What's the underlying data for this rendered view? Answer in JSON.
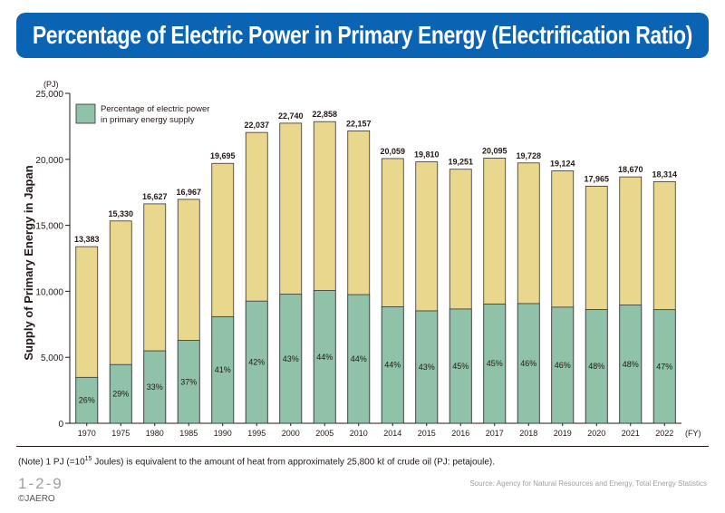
{
  "title": "Percentage of Electric Power in Primary Energy (Electrification Ratio)",
  "note": {
    "prefix": "(Note) 1 PJ (=10",
    "sup": "15",
    "suffix": " Joules) is equivalent to the amount of heat from approximately 25,800 kℓ of crude oil (PJ: petajoule)."
  },
  "figure_number": "1-2-9",
  "copyright": "©JAERO",
  "source": "Source: Agency for Natural Resources and Energy, Total Energy Statistics",
  "colors": {
    "total_bar": "#e9d78e",
    "electric_bar": "#8fc2a8",
    "bar_stroke": "#333333",
    "title_bg": "#0b63b3"
  },
  "chart_data": {
    "type": "bar",
    "stacked_overlay": true,
    "y_unit_label": "(PJ)",
    "x_unit_label": "(FY)",
    "ylabel": "Supply of Primary Energy in Japan",
    "ylim": [
      0,
      25000
    ],
    "yticks": [
      0,
      5000,
      10000,
      15000,
      20000,
      25000
    ],
    "ytick_labels": [
      "0",
      "5,000",
      "10,000",
      "15,000",
      "20,000",
      "25,000"
    ],
    "legend": {
      "label_line1": "Percentage of electric power",
      "label_line2": "in primary energy supply",
      "position": "top-left"
    },
    "categories": [
      "1970",
      "1975",
      "1980",
      "1985",
      "1990",
      "1995",
      "2000",
      "2005",
      "2010",
      "2014",
      "2015",
      "2016",
      "2017",
      "2018",
      "2019",
      "2020",
      "2021",
      "2022"
    ],
    "total_values": [
      13383,
      15330,
      16627,
      16967,
      19695,
      22037,
      22740,
      22858,
      22157,
      20059,
      19810,
      19251,
      20095,
      19728,
      19124,
      17965,
      18670,
      18314
    ],
    "total_labels": [
      "13,383",
      "15,330",
      "16,627",
      "16,967",
      "19,695",
      "22,037",
      "22,740",
      "22,858",
      "22,157",
      "20,059",
      "19,810",
      "19,251",
      "20,095",
      "19,728",
      "19,124",
      "17,965",
      "18,670",
      "18,314"
    ],
    "electric_values": [
      3480,
      4450,
      5490,
      6280,
      8080,
      9260,
      9780,
      10060,
      9750,
      8830,
      8520,
      8660,
      9040,
      9070,
      8800,
      8620,
      8960,
      8610
    ],
    "percent_labels": [
      "26%",
      "29%",
      "33%",
      "37%",
      "41%",
      "42%",
      "43%",
      "44%",
      "44%",
      "44%",
      "43%",
      "45%",
      "45%",
      "46%",
      "46%",
      "48%",
      "48%",
      "47%"
    ]
  }
}
